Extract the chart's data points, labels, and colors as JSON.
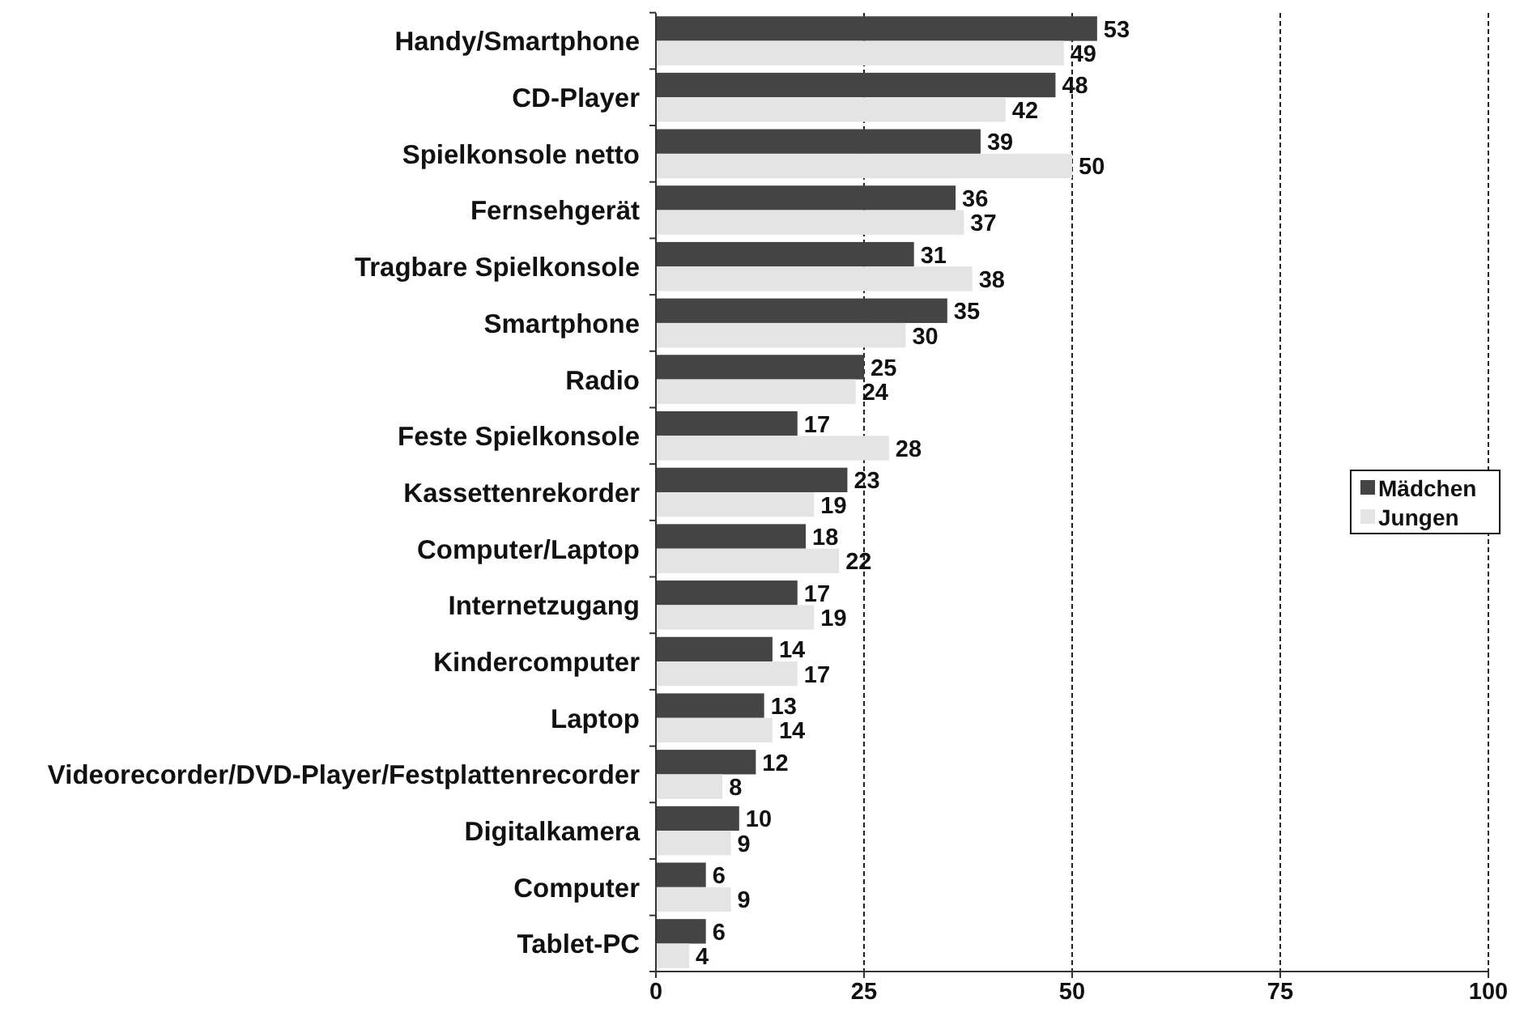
{
  "chart_data": {
    "type": "bar",
    "orientation": "horizontal",
    "categories": [
      "Handy/Smartphone",
      "CD-Player",
      "Spielkonsole netto",
      "Fernsehgerät",
      "Tragbare Spielkonsole",
      "Smartphone",
      "Radio",
      "Feste Spielkonsole",
      "Kassettenrekorder",
      "Computer/Laptop",
      "Internetzugang",
      "Kindercomputer",
      "Laptop",
      "Videorecorder/DVD-Player/Festplattenrecorder",
      "Digitalkamera",
      "Computer",
      "Tablet-PC"
    ],
    "series": [
      {
        "name": "Mädchen",
        "color": "#444444",
        "values": [
          53,
          48,
          39,
          36,
          31,
          35,
          25,
          17,
          23,
          18,
          17,
          14,
          13,
          12,
          10,
          6,
          6
        ]
      },
      {
        "name": "Jungen",
        "color": "#e4e4e4",
        "values": [
          49,
          42,
          50,
          37,
          38,
          30,
          24,
          28,
          19,
          22,
          19,
          17,
          14,
          8,
          9,
          9,
          4
        ]
      }
    ],
    "xlim": [
      0,
      100
    ],
    "xticks": [
      0,
      25,
      50,
      75,
      100
    ],
    "grid": "x",
    "legend": "right",
    "data_labels": true
  }
}
